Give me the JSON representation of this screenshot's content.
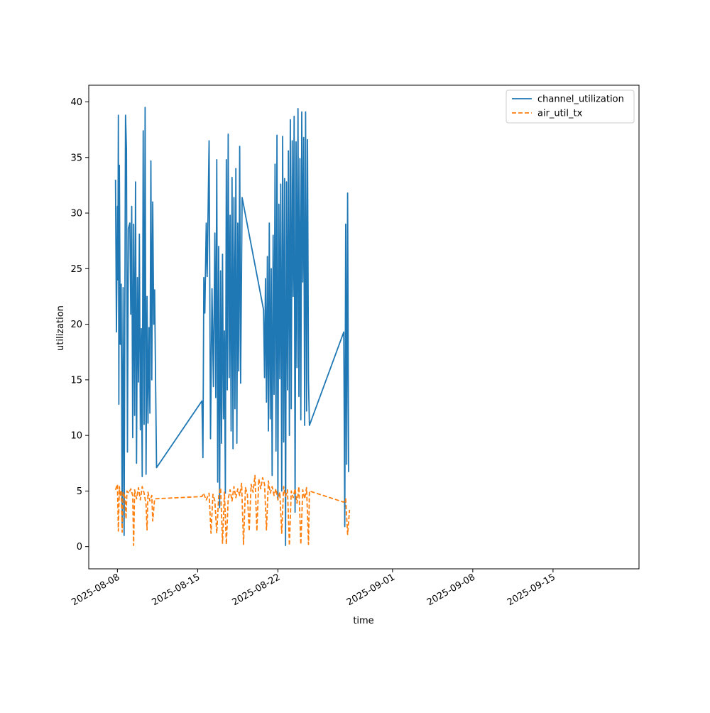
{
  "chart_data": {
    "type": "line",
    "title": "",
    "xlabel": "time",
    "ylabel": "utilization",
    "x_ticks": [
      "2025-08-08",
      "2025-08-15",
      "2025-08-22",
      "2025-09-01",
      "2025-09-08",
      "2025-09-15"
    ],
    "y_ticks": [
      "0",
      "5",
      "10",
      "15",
      "20",
      "25",
      "30",
      "35",
      "40"
    ],
    "xlim": [
      "2025-08-05T12:00",
      "2025-09-22T12:00"
    ],
    "ylim": [
      -2,
      41.5
    ],
    "grid": false,
    "legend_position": "top-right",
    "series": [
      {
        "name": "channel_utilization",
        "color": "#1f77b4",
        "style": "solid",
        "points": [
          [
            "2025-08-07T20:00",
            33
          ],
          [
            "2025-08-07T22:00",
            19.3
          ],
          [
            "2025-08-08T00:00",
            30.6
          ],
          [
            "2025-08-08T01:00",
            24
          ],
          [
            "2025-08-08T02:00",
            38.8
          ],
          [
            "2025-08-08T03:00",
            12.8
          ],
          [
            "2025-08-08T04:00",
            34.3
          ],
          [
            "2025-08-08T06:00",
            18.2
          ],
          [
            "2025-08-08T08:00",
            23.6
          ],
          [
            "2025-08-08T10:00",
            2.1
          ],
          [
            "2025-08-08T12:00",
            23.3
          ],
          [
            "2025-08-08T14:00",
            1
          ],
          [
            "2025-08-08T17:00",
            38.8
          ],
          [
            "2025-08-08T19:00",
            35.8
          ],
          [
            "2025-08-08T21:00",
            8.5
          ],
          [
            "2025-08-08T23:00",
            28.6
          ],
          [
            "2025-08-09T02:00",
            29.1
          ],
          [
            "2025-08-09T04:00",
            20.9
          ],
          [
            "2025-08-09T06:00",
            30.6
          ],
          [
            "2025-08-09T08:00",
            9.8
          ],
          [
            "2025-08-09T10:00",
            29
          ],
          [
            "2025-08-09T12:00",
            11.8
          ],
          [
            "2025-08-09T14:00",
            32.8
          ],
          [
            "2025-08-09T16:00",
            7.5
          ],
          [
            "2025-08-09T18:00",
            24.2
          ],
          [
            "2025-08-09T20:00",
            14.8
          ],
          [
            "2025-08-09T22:00",
            28.1
          ],
          [
            "2025-08-10T00:00",
            10.5
          ],
          [
            "2025-08-10T02:00",
            19.6
          ],
          [
            "2025-08-10T04:00",
            6.3
          ],
          [
            "2025-08-10T06:00",
            37.4
          ],
          [
            "2025-08-10T08:00",
            11
          ],
          [
            "2025-08-10T10:00",
            39.5
          ],
          [
            "2025-08-10T12:00",
            6.5
          ],
          [
            "2025-08-10T14:00",
            22.5
          ],
          [
            "2025-08-10T16:00",
            11.1
          ],
          [
            "2025-08-10T18:00",
            19.7
          ],
          [
            "2025-08-10T20:00",
            12
          ],
          [
            "2025-08-10T22:00",
            34.7
          ],
          [
            "2025-08-11T00:00",
            15
          ],
          [
            "2025-08-11T02:00",
            31
          ],
          [
            "2025-08-11T04:00",
            20
          ],
          [
            "2025-08-11T06:00",
            23.1
          ],
          [
            "2025-08-11T08:00",
            14.5
          ],
          [
            "2025-08-11T10:00",
            7.1
          ],
          [
            "2025-08-15T09:00",
            13.1
          ],
          [
            "2025-08-15T11:00",
            8
          ],
          [
            "2025-08-15T13:00",
            24.2
          ],
          [
            "2025-08-15T15:00",
            21
          ],
          [
            "2025-08-15T18:00",
            29.1
          ],
          [
            "2025-08-15T20:00",
            24.3
          ],
          [
            "2025-08-16T00:00",
            36.5
          ],
          [
            "2025-08-16T03:00",
            9.7
          ],
          [
            "2025-08-16T06:00",
            23.2
          ],
          [
            "2025-08-16T09:00",
            14.4
          ],
          [
            "2025-08-16T12:00",
            28.2
          ],
          [
            "2025-08-16T14:00",
            13.4
          ],
          [
            "2025-08-16T16:00",
            34.8
          ],
          [
            "2025-08-16T18:00",
            5.8
          ],
          [
            "2025-08-16T20:00",
            27
          ],
          [
            "2025-08-16T22:00",
            3.5
          ],
          [
            "2025-08-17T00:00",
            24.8
          ],
          [
            "2025-08-17T02:00",
            9.3
          ],
          [
            "2025-08-17T04:00",
            26.3
          ],
          [
            "2025-08-17T06:00",
            11.5
          ],
          [
            "2025-08-17T08:00",
            19.4
          ],
          [
            "2025-08-17T10:00",
            4.8
          ],
          [
            "2025-08-17T12:00",
            34.8
          ],
          [
            "2025-08-17T14:00",
            14.1
          ],
          [
            "2025-08-17T16:00",
            37.1
          ],
          [
            "2025-08-17T18:00",
            15.2
          ],
          [
            "2025-08-17T20:00",
            29.8
          ],
          [
            "2025-08-17T22:00",
            10.4
          ],
          [
            "2025-08-18T00:00",
            33.2
          ],
          [
            "2025-08-18T02:00",
            8.8
          ],
          [
            "2025-08-18T04:00",
            31.4
          ],
          [
            "2025-08-18T06:00",
            12.4
          ],
          [
            "2025-08-18T08:00",
            34
          ],
          [
            "2025-08-18T10:00",
            9.3
          ],
          [
            "2025-08-18T12:00",
            29.1
          ],
          [
            "2025-08-18T14:00",
            15.8
          ],
          [
            "2025-08-18T16:00",
            36
          ],
          [
            "2025-08-18T18:00",
            14.7
          ],
          [
            "2025-08-18T21:00",
            31.4
          ],
          [
            "2025-08-20T18:00",
            21.3
          ],
          [
            "2025-08-20T20:00",
            15.2
          ],
          [
            "2025-08-20T22:00",
            24.1
          ],
          [
            "2025-08-21T00:00",
            13
          ],
          [
            "2025-08-21T02:00",
            26.1
          ],
          [
            "2025-08-21T04:00",
            10.4
          ],
          [
            "2025-08-21T06:00",
            29.1
          ],
          [
            "2025-08-21T08:00",
            11.5
          ],
          [
            "2025-08-21T10:00",
            25
          ],
          [
            "2025-08-21T12:00",
            6.4
          ],
          [
            "2025-08-21T14:00",
            28
          ],
          [
            "2025-08-21T16:00",
            13.7
          ],
          [
            "2025-08-21T18:00",
            34.4
          ],
          [
            "2025-08-21T20:00",
            8.6
          ],
          [
            "2025-08-21T22:00",
            37
          ],
          [
            "2025-08-22T00:00",
            4.2
          ],
          [
            "2025-08-22T02:00",
            30.8
          ],
          [
            "2025-08-22T04:00",
            15.1
          ],
          [
            "2025-08-22T06:00",
            32.6
          ],
          [
            "2025-08-22T08:00",
            5
          ],
          [
            "2025-08-22T10:00",
            36.9
          ],
          [
            "2025-08-22T12:00",
            9.4
          ],
          [
            "2025-08-22T14:00",
            33.1
          ],
          [
            "2025-08-22T16:00",
            0.1
          ],
          [
            "2025-08-22T18:00",
            32.8
          ],
          [
            "2025-08-22T20:00",
            14.1
          ],
          [
            "2025-08-22T22:00",
            35.6
          ],
          [
            "2025-08-23T00:00",
            10
          ],
          [
            "2025-08-23T02:00",
            38.4
          ],
          [
            "2025-08-23T04:00",
            12.4
          ],
          [
            "2025-08-23T06:00",
            36.5
          ],
          [
            "2025-08-23T08:00",
            22.5
          ],
          [
            "2025-08-23T10:00",
            38.7
          ],
          [
            "2025-08-23T12:00",
            3.1
          ],
          [
            "2025-08-23T14:00",
            36.4
          ],
          [
            "2025-08-23T16:00",
            16.1
          ],
          [
            "2025-08-23T18:00",
            39.4
          ],
          [
            "2025-08-23T20:00",
            13.5
          ],
          [
            "2025-08-23T22:00",
            34.9
          ],
          [
            "2025-08-24T00:00",
            11.4
          ],
          [
            "2025-08-24T02:00",
            39.1
          ],
          [
            "2025-08-24T04:00",
            23.8
          ],
          [
            "2025-08-24T06:00",
            36.8
          ],
          [
            "2025-08-24T08:00",
            10.9
          ],
          [
            "2025-08-24T10:00",
            39.1
          ],
          [
            "2025-08-24T12:00",
            12.2
          ],
          [
            "2025-08-24T14:00",
            36.6
          ],
          [
            "2025-08-24T16:00",
            15
          ],
          [
            "2025-08-24T18:00",
            10.9
          ],
          [
            "2025-08-27T18:00",
            19.3
          ],
          [
            "2025-08-27T20:00",
            1.8
          ],
          [
            "2025-08-27T22:00",
            29
          ],
          [
            "2025-08-28T00:00",
            7.4
          ],
          [
            "2025-08-28T02:00",
            31.8
          ],
          [
            "2025-08-28T04:00",
            6.7
          ]
        ]
      },
      {
        "name": "air_util_tx",
        "color": "#ff7f0e",
        "style": "dashed",
        "points": [
          [
            "2025-08-07T20:00",
            5.1
          ],
          [
            "2025-08-08T00:00",
            5.6
          ],
          [
            "2025-08-08T02:00",
            1.4
          ],
          [
            "2025-08-08T04:00",
            5.4
          ],
          [
            "2025-08-08T06:00",
            4.5
          ],
          [
            "2025-08-08T08:00",
            5.1
          ],
          [
            "2025-08-08T10:00",
            1.3
          ],
          [
            "2025-08-08T12:00",
            4.9
          ],
          [
            "2025-08-08T16:00",
            4.4
          ],
          [
            "2025-08-08T18:00",
            2.5
          ],
          [
            "2025-08-08T20:00",
            5
          ],
          [
            "2025-08-09T00:00",
            4.8
          ],
          [
            "2025-08-09T04:00",
            5.2
          ],
          [
            "2025-08-09T08:00",
            4.6
          ],
          [
            "2025-08-09T10:00",
            0.1
          ],
          [
            "2025-08-09T12:00",
            5.1
          ],
          [
            "2025-08-09T16:00",
            4.3
          ],
          [
            "2025-08-09T20:00",
            5.3
          ],
          [
            "2025-08-10T00:00",
            4.2
          ],
          [
            "2025-08-10T04:00",
            5.4
          ],
          [
            "2025-08-10T08:00",
            4.8
          ],
          [
            "2025-08-10T12:00",
            3.8
          ],
          [
            "2025-08-10T14:00",
            1.5
          ],
          [
            "2025-08-10T16:00",
            4.9
          ],
          [
            "2025-08-10T20:00",
            4.1
          ],
          [
            "2025-08-11T00:00",
            4.6
          ],
          [
            "2025-08-11T02:00",
            2.3
          ],
          [
            "2025-08-11T06:00",
            4.3
          ],
          [
            "2025-08-15T09:00",
            4.5
          ],
          [
            "2025-08-15T12:00",
            4.8
          ],
          [
            "2025-08-15T18:00",
            4.2
          ],
          [
            "2025-08-16T00:00",
            4.8
          ],
          [
            "2025-08-16T04:00",
            1.2
          ],
          [
            "2025-08-16T08:00",
            4.7
          ],
          [
            "2025-08-16T12:00",
            4.1
          ],
          [
            "2025-08-16T16:00",
            1.2
          ],
          [
            "2025-08-16T20:00",
            4.5
          ],
          [
            "2025-08-17T00:00",
            5.3
          ],
          [
            "2025-08-17T04:00",
            0.3
          ],
          [
            "2025-08-17T08:00",
            4.9
          ],
          [
            "2025-08-17T12:00",
            0.2
          ],
          [
            "2025-08-17T16:00",
            4.3
          ],
          [
            "2025-08-17T20:00",
            5.1
          ],
          [
            "2025-08-18T00:00",
            4.1
          ],
          [
            "2025-08-18T04:00",
            5.4
          ],
          [
            "2025-08-18T08:00",
            4.4
          ],
          [
            "2025-08-18T12:00",
            5.2
          ],
          [
            "2025-08-18T16:00",
            4.6
          ],
          [
            "2025-08-18T20:00",
            5.7
          ],
          [
            "2025-08-19T00:00",
            0.2
          ],
          [
            "2025-08-19T04:00",
            5.3
          ],
          [
            "2025-08-19T08:00",
            4.7
          ],
          [
            "2025-08-19T12:00",
            1.4
          ],
          [
            "2025-08-19T16:00",
            5.6
          ],
          [
            "2025-08-19T20:00",
            4.9
          ],
          [
            "2025-08-20T00:00",
            6.4
          ],
          [
            "2025-08-20T04:00",
            1.4
          ],
          [
            "2025-08-20T08:00",
            6.1
          ],
          [
            "2025-08-20T12:00",
            5.2
          ],
          [
            "2025-08-20T16:00",
            6.2
          ],
          [
            "2025-08-20T20:00",
            5.6
          ],
          [
            "2025-08-21T00:00",
            1.5
          ],
          [
            "2025-08-21T04:00",
            5.9
          ],
          [
            "2025-08-21T08:00",
            4.8
          ],
          [
            "2025-08-21T12:00",
            5.4
          ],
          [
            "2025-08-21T16:00",
            4.6
          ],
          [
            "2025-08-21T20:00",
            5.2
          ],
          [
            "2025-08-22T00:00",
            4.2
          ],
          [
            "2025-08-22T04:00",
            4.9
          ],
          [
            "2025-08-22T08:00",
            1.2
          ],
          [
            "2025-08-22T12:00",
            5.4
          ],
          [
            "2025-08-22T16:00",
            4.5
          ],
          [
            "2025-08-22T20:00",
            5.1
          ],
          [
            "2025-08-23T00:00",
            0.1
          ],
          [
            "2025-08-23T04:00",
            5
          ],
          [
            "2025-08-23T08:00",
            4.4
          ],
          [
            "2025-08-23T12:00",
            5.2
          ],
          [
            "2025-08-23T16:00",
            3.9
          ],
          [
            "2025-08-23T20:00",
            5.4
          ],
          [
            "2025-08-24T00:00",
            0.2
          ],
          [
            "2025-08-24T04:00",
            5.1
          ],
          [
            "2025-08-24T08:00",
            4.3
          ],
          [
            "2025-08-24T12:00",
            5.3
          ],
          [
            "2025-08-24T16:00",
            0.2
          ],
          [
            "2025-08-24T18:00",
            5
          ],
          [
            "2025-08-27T18:00",
            4
          ],
          [
            "2025-08-27T22:00",
            4.3
          ],
          [
            "2025-08-28T02:00",
            1.1
          ],
          [
            "2025-08-28T06:00",
            3.3
          ]
        ]
      }
    ]
  }
}
